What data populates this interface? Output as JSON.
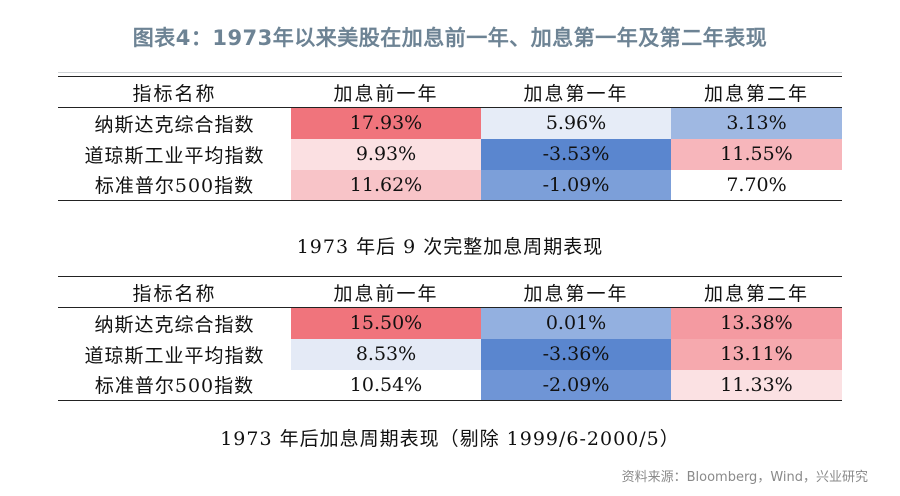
{
  "figure": {
    "title": "图表4：1973年以来美股在加息前一年、加息第一年及第二年表现",
    "source": "资料来源：Bloomberg，Wind，兴业研究"
  },
  "tables": [
    {
      "caption": "1973 年后 9 次完整加息周期表现",
      "headers": [
        "指标名称",
        "加息前一年",
        "加息第一年",
        "加息第二年"
      ],
      "rows": [
        {
          "label": "纳斯达克综合指数",
          "cells": [
            {
              "value": "17.93%",
              "color": "#f0747c"
            },
            {
              "value": "5.96%",
              "color": "#e6ecf7"
            },
            {
              "value": "3.13%",
              "color": "#9fb8e2"
            }
          ]
        },
        {
          "label": "道琼斯工业平均指数",
          "cells": [
            {
              "value": "9.93%",
              "color": "#fbe0e2"
            },
            {
              "value": "-3.53%",
              "color": "#5a86cf"
            },
            {
              "value": "11.55%",
              "color": "#f7b6bb"
            }
          ]
        },
        {
          "label": "标准普尔500指数",
          "cells": [
            {
              "value": "11.62%",
              "color": "#f8c4c8"
            },
            {
              "value": "-1.09%",
              "color": "#7c9fd9"
            },
            {
              "value": "7.70%",
              "color": "#ffffff"
            }
          ]
        }
      ]
    },
    {
      "caption": "1973 年后加息周期表现（剔除 1999/6-2000/5）",
      "headers": [
        "指标名称",
        "加息前一年",
        "加息第一年",
        "加息第二年"
      ],
      "rows": [
        {
          "label": "纳斯达克综合指数",
          "cells": [
            {
              "value": "15.50%",
              "color": "#f0747c"
            },
            {
              "value": "0.01%",
              "color": "#93b0e0"
            },
            {
              "value": "13.38%",
              "color": "#f49aa1"
            }
          ]
        },
        {
          "label": "道琼斯工业平均指数",
          "cells": [
            {
              "value": "8.53%",
              "color": "#e4eaf6"
            },
            {
              "value": "-3.36%",
              "color": "#5a86cf"
            },
            {
              "value": "13.11%",
              "color": "#f6a9ae"
            }
          ]
        },
        {
          "label": "标准普尔500指数",
          "cells": [
            {
              "value": "10.54%",
              "color": "#ffffff"
            },
            {
              "value": "-2.09%",
              "color": "#6f95d6"
            },
            {
              "value": "11.33%",
              "color": "#fbe1e3"
            }
          ]
        }
      ]
    }
  ]
}
